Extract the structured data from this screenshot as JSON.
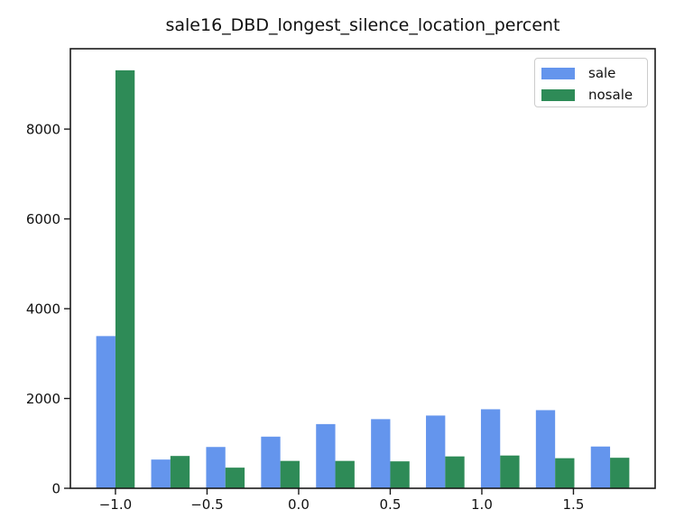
{
  "figure": {
    "background": "#ffffff"
  },
  "chart_data": {
    "type": "bar",
    "title": "sale16_DBD_longest_silence_location_percent",
    "categories": [
      -1.0,
      -0.7,
      -0.4,
      -0.1,
      0.2,
      0.5,
      0.8,
      1.1,
      1.4,
      1.7
    ],
    "series": [
      {
        "name": "sale",
        "color": "#6495ed",
        "values": [
          3390,
          640,
          920,
          1150,
          1430,
          1540,
          1620,
          1760,
          1740,
          930
        ]
      },
      {
        "name": "nosale",
        "color": "#2e8b57",
        "values": [
          9310,
          720,
          460,
          610,
          610,
          600,
          710,
          730,
          670,
          680
        ]
      }
    ],
    "bar_width": 0.105,
    "xlim": [
      -1.246,
      1.946
    ],
    "ylim": [
      0,
      9790
    ],
    "xticks": [
      -1.0,
      -0.5,
      0.0,
      0.5,
      1.0,
      1.5
    ],
    "xtick_labels": [
      "−1.0",
      "−0.5",
      "0.0",
      "0.5",
      "1.0",
      "1.5"
    ],
    "yticks": [
      0,
      2000,
      4000,
      6000,
      8000
    ],
    "ytick_labels": [
      "0",
      "2000",
      "4000",
      "6000",
      "8000"
    ],
    "xlabel": "",
    "ylabel": "",
    "grid": false,
    "legend_position": "upper right",
    "axis_color": "#1a1a1a"
  }
}
